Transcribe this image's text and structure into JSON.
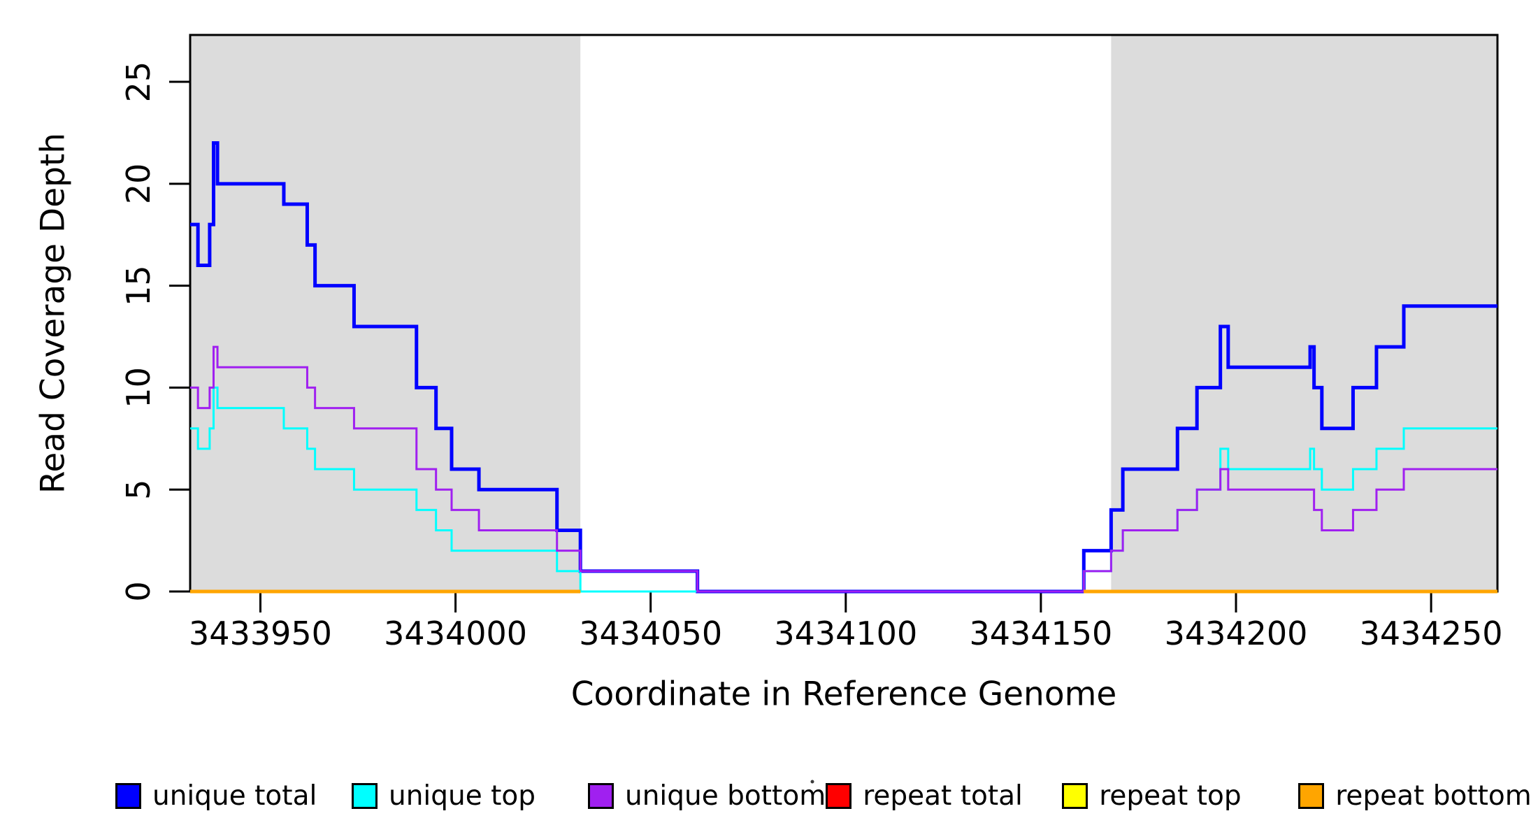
{
  "chart_data": {
    "type": "line",
    "step": true,
    "title": "",
    "xlabel": "Coordinate in Reference Genome",
    "ylabel": "Read Coverage Depth",
    "xlim": [
      3433932,
      3434267
    ],
    "ylim": [
      0,
      27.3
    ],
    "x_ticks": [
      3433950,
      3434000,
      3434050,
      3434100,
      3434150,
      3434200,
      3434250
    ],
    "y_ticks": [
      0,
      5,
      10,
      15,
      20,
      25
    ],
    "grid": false,
    "legend_position": "bottom",
    "background_shading": {
      "color": "#DCDCDC",
      "regions": [
        [
          3433932,
          3434032
        ],
        [
          3434168,
          3434267
        ]
      ]
    },
    "series": [
      {
        "name": "unique total",
        "color": "#0000FF",
        "line_width": 5,
        "x_end": 3434267,
        "steps": [
          [
            3433932,
            18
          ],
          [
            3433934,
            16
          ],
          [
            3433937,
            18
          ],
          [
            3433938,
            22
          ],
          [
            3433939,
            20
          ],
          [
            3433956,
            19
          ],
          [
            3433962,
            17
          ],
          [
            3433964,
            15
          ],
          [
            3433974,
            13
          ],
          [
            3433990,
            10
          ],
          [
            3433995,
            8
          ],
          [
            3433999,
            6
          ],
          [
            3434006,
            5
          ],
          [
            3434026,
            3
          ],
          [
            3434032,
            1
          ],
          [
            3434062,
            0
          ],
          [
            3434161,
            2
          ],
          [
            3434168,
            4
          ],
          [
            3434171,
            6
          ],
          [
            3434185,
            8
          ],
          [
            3434190,
            10
          ],
          [
            3434196,
            13
          ],
          [
            3434198,
            11
          ],
          [
            3434219,
            12
          ],
          [
            3434220,
            10
          ],
          [
            3434222,
            8
          ],
          [
            3434230,
            10
          ],
          [
            3434236,
            12
          ],
          [
            3434243,
            14
          ]
        ]
      },
      {
        "name": "unique top",
        "color": "#00FFFF",
        "line_width": 3,
        "x_end": 3434267,
        "steps": [
          [
            3433932,
            8
          ],
          [
            3433934,
            7
          ],
          [
            3433937,
            8
          ],
          [
            3433938,
            10
          ],
          [
            3433939,
            9
          ],
          [
            3433956,
            8
          ],
          [
            3433962,
            7
          ],
          [
            3433964,
            6
          ],
          [
            3433974,
            5
          ],
          [
            3433990,
            4
          ],
          [
            3433995,
            3
          ],
          [
            3433999,
            2
          ],
          [
            3434026,
            1
          ],
          [
            3434032,
            0
          ],
          [
            3434161,
            1
          ],
          [
            3434168,
            2
          ],
          [
            3434171,
            3
          ],
          [
            3434185,
            4
          ],
          [
            3434190,
            5
          ],
          [
            3434196,
            7
          ],
          [
            3434198,
            6
          ],
          [
            3434219,
            7
          ],
          [
            3434220,
            6
          ],
          [
            3434222,
            5
          ],
          [
            3434230,
            6
          ],
          [
            3434236,
            7
          ],
          [
            3434243,
            8
          ]
        ]
      },
      {
        "name": "unique bottom",
        "color": "#A020F0",
        "line_width": 3,
        "x_end": 3434267,
        "steps": [
          [
            3433932,
            10
          ],
          [
            3433934,
            9
          ],
          [
            3433937,
            10
          ],
          [
            3433938,
            12
          ],
          [
            3433939,
            11
          ],
          [
            3433962,
            10
          ],
          [
            3433964,
            9
          ],
          [
            3433974,
            8
          ],
          [
            3433990,
            6
          ],
          [
            3433995,
            5
          ],
          [
            3433999,
            4
          ],
          [
            3434006,
            3
          ],
          [
            3434026,
            2
          ],
          [
            3434032,
            1
          ],
          [
            3434062,
            0
          ],
          [
            3434161,
            1
          ],
          [
            3434168,
            2
          ],
          [
            3434171,
            3
          ],
          [
            3434185,
            4
          ],
          [
            3434190,
            5
          ],
          [
            3434196,
            6
          ],
          [
            3434198,
            5
          ],
          [
            3434220,
            4
          ],
          [
            3434222,
            3
          ],
          [
            3434230,
            4
          ],
          [
            3434236,
            5
          ],
          [
            3434243,
            6
          ]
        ]
      },
      {
        "name": "repeat total",
        "color": "#FF0000",
        "line_width": 4,
        "value": 0,
        "segments": [
          [
            3433932,
            3434032
          ],
          [
            3434161,
            3434267
          ]
        ]
      },
      {
        "name": "repeat top",
        "color": "#FFFF00",
        "line_width": 4,
        "value": 0,
        "segments": [
          [
            3433932,
            3434032
          ],
          [
            3434161,
            3434267
          ]
        ]
      },
      {
        "name": "repeat bottom",
        "color": "#FFA500",
        "line_width": 5,
        "value": 0,
        "segments": [
          [
            3433932,
            3434032
          ],
          [
            3434161,
            3434267
          ]
        ]
      }
    ],
    "legend": [
      {
        "label": "unique total",
        "color": "#0000FF"
      },
      {
        "label": "unique top",
        "color": "#00FFFF"
      },
      {
        "label": "unique bottom",
        "color": "#A020F0"
      },
      {
        "label": "repeat total",
        "color": "#FF0000"
      },
      {
        "label": "repeat top",
        "color": "#FFFF00"
      },
      {
        "label": "repeat bottom",
        "color": "#FFA500"
      }
    ]
  }
}
